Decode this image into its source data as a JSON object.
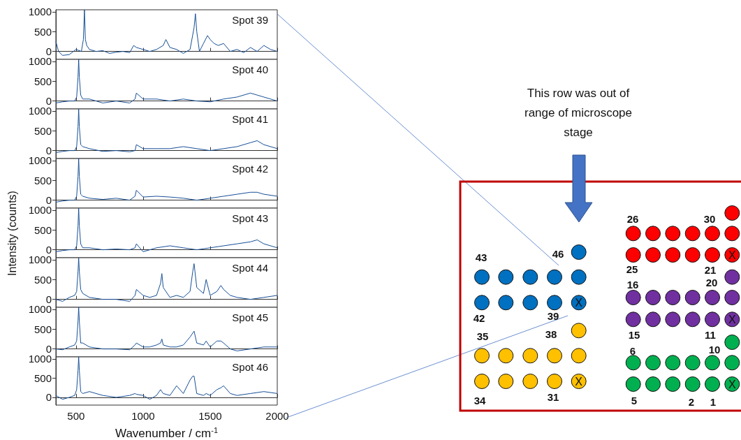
{
  "chart_data": [
    {
      "type": "line",
      "title": "Spot 39",
      "x": [
        350,
        370,
        400,
        450,
        500,
        540,
        555,
        563,
        570,
        580,
        600,
        650,
        700,
        750,
        800,
        850,
        900,
        930,
        950,
        1000,
        1050,
        1100,
        1150,
        1170,
        1200,
        1250,
        1300,
        1350,
        1380,
        1390,
        1400,
        1420,
        1450,
        1480,
        1500,
        1530,
        1560,
        1600,
        1650,
        1700,
        1750,
        1800,
        1850,
        1900,
        1950,
        2000
      ],
      "series": [
        {
          "color": "#174f96",
          "values": [
            250,
            0,
            -100,
            -80,
            50,
            0,
            300,
            1050,
            300,
            150,
            50,
            0,
            20,
            -50,
            -20,
            0,
            -30,
            150,
            100,
            50,
            0,
            50,
            150,
            300,
            100,
            50,
            -50,
            50,
            600,
            950,
            500,
            0,
            200,
            400,
            300,
            200,
            150,
            200,
            0,
            50,
            -30,
            100,
            0,
            150,
            50,
            0
          ]
        }
      ],
      "xlim": [
        350,
        2000
      ],
      "xticks": [
        500,
        1000,
        1500,
        2000
      ],
      "ylim": [
        -200,
        1050
      ],
      "yticks": [
        0,
        500,
        1000
      ],
      "tick_labels": "y"
    },
    {
      "type": "line",
      "title": "Spot 40",
      "x": [
        350,
        400,
        450,
        490,
        505,
        515,
        520,
        525,
        535,
        550,
        600,
        700,
        800,
        900,
        940,
        950,
        1000,
        1100,
        1200,
        1300,
        1400,
        1500,
        1600,
        1700,
        1800,
        1850,
        1900,
        2000
      ],
      "series": [
        {
          "color": "#174f96",
          "values": [
            -50,
            -20,
            0,
            0,
            100,
            600,
            1050,
            600,
            150,
            50,
            50,
            -50,
            0,
            -50,
            50,
            200,
            50,
            50,
            0,
            50,
            0,
            -20,
            50,
            100,
            200,
            150,
            100,
            0
          ]
        }
      ],
      "xlim": [
        350,
        2000
      ],
      "xticks": [
        500,
        1000,
        1500,
        2000
      ],
      "ylim": [
        -200,
        1050
      ],
      "yticks": [
        0,
        500,
        1000
      ],
      "tick_labels": "y"
    },
    {
      "type": "line",
      "title": "Spot 41",
      "x": [
        350,
        400,
        450,
        490,
        505,
        515,
        520,
        525,
        535,
        550,
        600,
        700,
        800,
        900,
        940,
        950,
        1000,
        1100,
        1200,
        1300,
        1400,
        1500,
        1600,
        1700,
        1800,
        1850,
        1900,
        2000
      ],
      "series": [
        {
          "color": "#174f96",
          "values": [
            -50,
            -20,
            0,
            0,
            100,
            600,
            1050,
            600,
            150,
            100,
            50,
            -20,
            0,
            -30,
            0,
            150,
            50,
            50,
            50,
            100,
            50,
            0,
            50,
            100,
            200,
            250,
            150,
            50
          ]
        }
      ],
      "xlim": [
        350,
        2000
      ],
      "xticks": [
        500,
        1000,
        1500,
        2000
      ],
      "ylim": [
        -200,
        1050
      ],
      "yticks": [
        0,
        500,
        1000
      ],
      "tick_labels": "y"
    },
    {
      "type": "line",
      "title": "Spot 42",
      "x": [
        350,
        400,
        450,
        490,
        505,
        515,
        520,
        525,
        535,
        550,
        600,
        700,
        800,
        900,
        940,
        950,
        1000,
        1100,
        1200,
        1300,
        1400,
        1500,
        1600,
        1700,
        1800,
        1850,
        1900,
        2000
      ],
      "series": [
        {
          "color": "#174f96",
          "values": [
            -50,
            -20,
            0,
            0,
            100,
            600,
            1050,
            600,
            150,
            100,
            50,
            20,
            50,
            0,
            100,
            250,
            80,
            100,
            80,
            50,
            0,
            50,
            100,
            150,
            200,
            200,
            150,
            100
          ]
        }
      ],
      "xlim": [
        350,
        2000
      ],
      "xticks": [
        500,
        1000,
        1500,
        2000
      ],
      "ylim": [
        -200,
        1050
      ],
      "yticks": [
        0,
        500,
        1000
      ],
      "tick_labels": "y"
    },
    {
      "type": "line",
      "title": "Spot 43",
      "ylabel": "Intensity (counts)",
      "x": [
        350,
        400,
        450,
        490,
        505,
        515,
        520,
        525,
        535,
        550,
        600,
        700,
        800,
        900,
        940,
        950,
        1000,
        1100,
        1200,
        1300,
        1400,
        1500,
        1600,
        1700,
        1800,
        1850,
        1900,
        2000
      ],
      "series": [
        {
          "color": "#174f96",
          "values": [
            -50,
            -20,
            0,
            0,
            100,
            600,
            1050,
            600,
            150,
            50,
            50,
            0,
            20,
            0,
            50,
            150,
            -50,
            50,
            100,
            50,
            0,
            50,
            100,
            150,
            200,
            250,
            150,
            50
          ]
        }
      ],
      "xlim": [
        350,
        2000
      ],
      "xticks": [
        500,
        1000,
        1500,
        2000
      ],
      "ylim": [
        -200,
        1050
      ],
      "yticks": [
        0,
        500,
        1000
      ],
      "tick_labels": "y"
    },
    {
      "type": "line",
      "title": "Spot 44",
      "x": [
        350,
        400,
        450,
        490,
        505,
        515,
        520,
        525,
        535,
        550,
        600,
        700,
        800,
        900,
        940,
        950,
        1000,
        1050,
        1100,
        1130,
        1140,
        1150,
        1200,
        1250,
        1300,
        1350,
        1370,
        1380,
        1400,
        1450,
        1470,
        1500,
        1550,
        1580,
        1600,
        1650,
        1700,
        1800,
        1900,
        2000
      ],
      "series": [
        {
          "color": "#174f96",
          "values": [
            0,
            -50,
            50,
            100,
            200,
            700,
            1050,
            700,
            250,
            150,
            50,
            0,
            0,
            -50,
            100,
            250,
            100,
            50,
            100,
            400,
            650,
            300,
            50,
            100,
            50,
            200,
            700,
            900,
            300,
            150,
            500,
            100,
            200,
            350,
            250,
            100,
            50,
            0,
            50,
            100
          ]
        }
      ],
      "xlim": [
        350,
        2000
      ],
      "xticks": [
        500,
        1000,
        1500,
        2000
      ],
      "ylim": [
        -200,
        1050
      ],
      "yticks": [
        0,
        500,
        1000
      ],
      "tick_labels": "y"
    },
    {
      "type": "line",
      "title": "Spot 45",
      "x": [
        350,
        400,
        450,
        490,
        505,
        515,
        520,
        525,
        535,
        550,
        600,
        700,
        800,
        900,
        940,
        950,
        1000,
        1050,
        1100,
        1130,
        1140,
        1150,
        1200,
        1250,
        1300,
        1350,
        1370,
        1380,
        1400,
        1450,
        1470,
        1500,
        1550,
        1580,
        1600,
        1650,
        1700,
        1800,
        1900,
        2000
      ],
      "series": [
        {
          "color": "#174f96",
          "values": [
            0,
            -20,
            50,
            100,
            200,
            700,
            1050,
            700,
            150,
            150,
            50,
            0,
            0,
            -20,
            100,
            150,
            50,
            50,
            100,
            150,
            250,
            100,
            50,
            50,
            100,
            300,
            400,
            450,
            150,
            100,
            200,
            50,
            200,
            200,
            150,
            0,
            -50,
            0,
            50,
            50
          ]
        }
      ],
      "xlim": [
        350,
        2000
      ],
      "xticks": [
        500,
        1000,
        1500,
        2000
      ],
      "ylim": [
        -200,
        1050
      ],
      "yticks": [
        0,
        500,
        1000
      ],
      "tick_labels": "y"
    },
    {
      "type": "line",
      "title": "Spot 46",
      "xlabel": "Wavenumber / cm$^{-1}$",
      "x": [
        350,
        400,
        450,
        490,
        505,
        515,
        520,
        525,
        535,
        550,
        600,
        700,
        800,
        900,
        940,
        950,
        1000,
        1050,
        1100,
        1130,
        1140,
        1150,
        1200,
        1250,
        1300,
        1350,
        1370,
        1380,
        1400,
        1450,
        1470,
        1500,
        1550,
        1580,
        1600,
        1650,
        1700,
        1800,
        1900,
        2000
      ],
      "series": [
        {
          "color": "#174f96",
          "values": [
            50,
            -50,
            0,
            50,
            200,
            700,
            1050,
            700,
            150,
            100,
            150,
            50,
            0,
            50,
            100,
            80,
            50,
            -50,
            50,
            200,
            150,
            100,
            50,
            300,
            100,
            450,
            550,
            550,
            100,
            50,
            100,
            50,
            200,
            250,
            300,
            100,
            50,
            100,
            150,
            100
          ]
        }
      ],
      "xlim": [
        350,
        2000
      ],
      "xticks": [
        500,
        1000,
        1500,
        2000
      ],
      "ylim": [
        -200,
        1050
      ],
      "yticks": [
        0,
        500,
        1000
      ]
    },
    {
      "type": "other",
      "annotations": [
        "This row was out of range of microscope stage",
        "46",
        "43",
        "42",
        "39",
        "35",
        "38",
        "34",
        "31",
        "26",
        "30",
        "25",
        "21",
        "16",
        "20",
        "15",
        "11",
        "6",
        "10",
        "5",
        "2",
        "1",
        "X",
        "X",
        "X",
        "X",
        "X"
      ]
    }
  ]
}
